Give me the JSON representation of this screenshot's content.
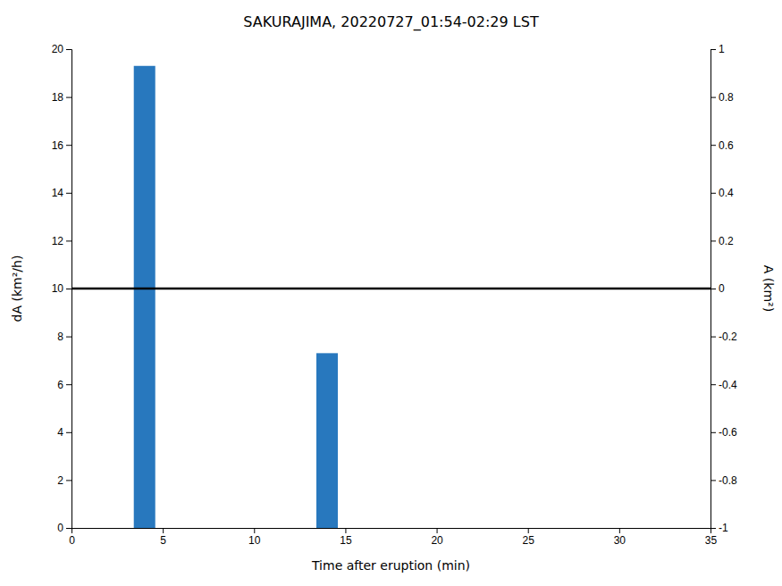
{
  "chart_data": {
    "type": "bar",
    "title": "SAKURAJIMA, 20220727_01:54-02:29 LST",
    "xlabel": "Time after eruption (min)",
    "ylabel": "dA (km²/h)",
    "y2label": "A (km²)",
    "x": [
      4.0,
      14.0
    ],
    "values": [
      19.3,
      7.3
    ],
    "color": "#2878BE",
    "xlim": [
      0,
      35
    ],
    "xticks": [
      0,
      5,
      10,
      15,
      20,
      25,
      30,
      35
    ],
    "ylim": [
      0,
      20
    ],
    "yticks": [
      0,
      2,
      4,
      6,
      8,
      10,
      12,
      14,
      16,
      18,
      20
    ],
    "y2lim": [
      -1,
      1
    ],
    "y2ticks": [
      -1,
      -0.8,
      -0.6,
      -0.4,
      -0.2,
      0,
      0.2,
      0.4,
      0.6,
      0.8,
      1
    ],
    "hline": {
      "y": 10,
      "color": "#000000"
    },
    "grid": false
  }
}
